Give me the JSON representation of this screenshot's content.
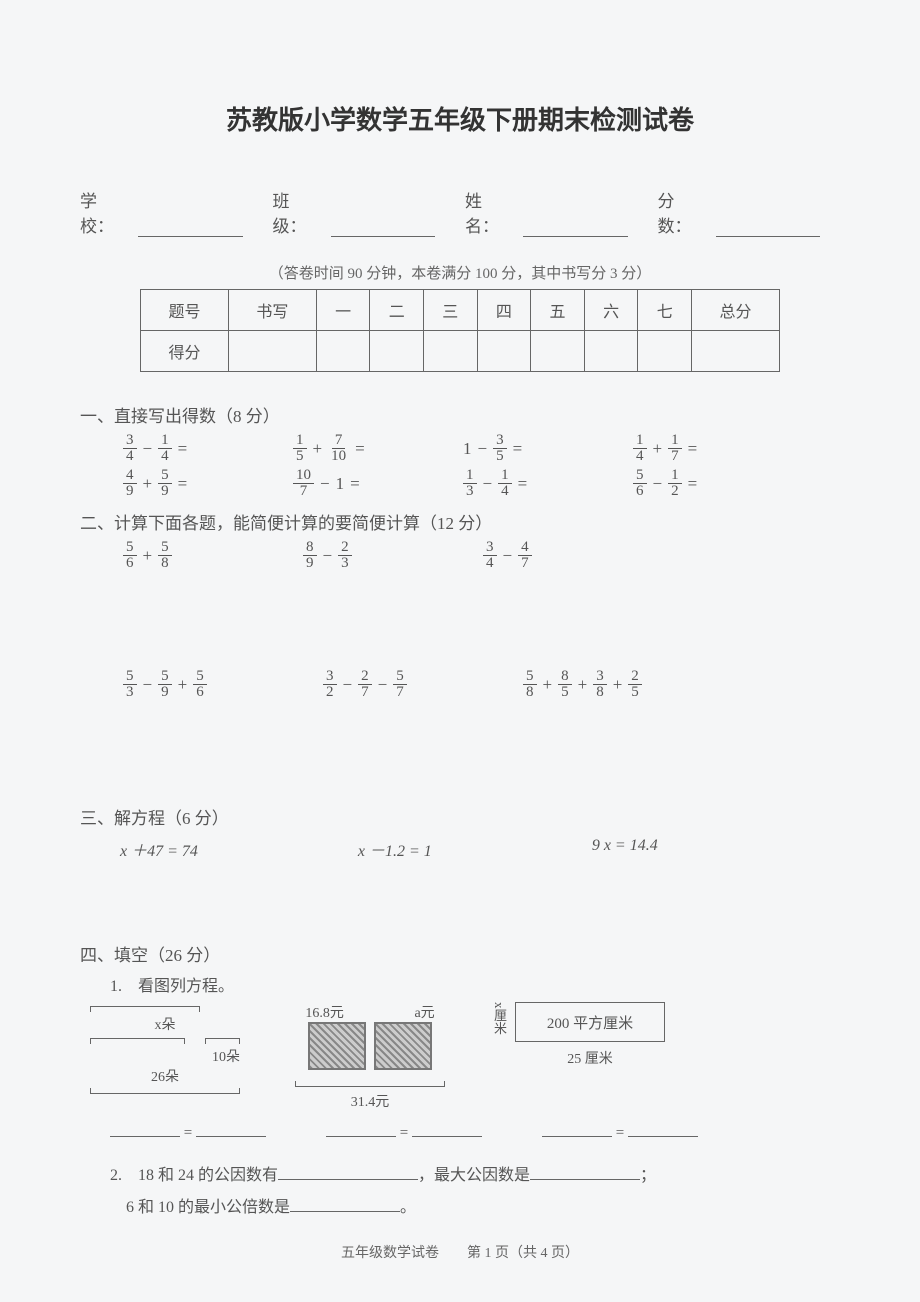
{
  "title": "苏教版小学数学五年级下册期末检测试卷",
  "info": {
    "school": "学校：",
    "class": "班级：",
    "name": "姓名：",
    "score": "分数："
  },
  "note": "（答卷时间 90 分钟，本卷满分 100 分，其中书写分 3 分）",
  "table": {
    "headers": [
      "题号",
      "书写",
      "一",
      "二",
      "三",
      "四",
      "五",
      "六",
      "七",
      "总分"
    ],
    "row_label": "得分"
  },
  "sec1": {
    "title": "一、直接写出得数（8 分）",
    "items": [
      [
        [
          "3",
          "4"
        ],
        "−",
        [
          "1",
          "4"
        ]
      ],
      [
        [
          "1",
          "5"
        ],
        "+",
        [
          "7",
          "10"
        ]
      ],
      [
        "1",
        "−",
        [
          "3",
          "5"
        ]
      ],
      [
        [
          "1",
          "4"
        ],
        "+",
        [
          "1",
          "7"
        ]
      ],
      [
        [
          "4",
          "9"
        ],
        "+",
        [
          "5",
          "9"
        ]
      ],
      [
        [
          "10",
          "7"
        ],
        "−",
        "1"
      ],
      [
        [
          "1",
          "3"
        ],
        "−",
        [
          "1",
          "4"
        ]
      ],
      [
        [
          "5",
          "6"
        ],
        "−",
        [
          "1",
          "2"
        ]
      ]
    ]
  },
  "sec2": {
    "title": "二、计算下面各题，能简便计算的要简便计算（12 分）",
    "row1": [
      [
        [
          "5",
          "6"
        ],
        "+",
        [
          "5",
          "8"
        ]
      ],
      [
        [
          "8",
          "9"
        ],
        "−",
        [
          "2",
          "3"
        ]
      ],
      [
        [
          "3",
          "4"
        ],
        "−",
        [
          "4",
          "7"
        ]
      ]
    ],
    "row2": [
      [
        [
          "5",
          "3"
        ],
        "−",
        [
          "5",
          "9"
        ],
        "+",
        [
          "5",
          "6"
        ]
      ],
      [
        [
          "3",
          "2"
        ],
        "−",
        [
          "2",
          "7"
        ],
        "−",
        [
          "5",
          "7"
        ]
      ],
      [
        [
          "5",
          "8"
        ],
        "+",
        [
          "8",
          "5"
        ],
        "+",
        [
          "3",
          "8"
        ],
        "+",
        [
          "2",
          "5"
        ]
      ]
    ]
  },
  "sec3": {
    "title": "三、解方程（6 分）",
    "eqs": [
      "x ＋47 = 74",
      "x －1.2 = 1",
      "9 x = 14.4"
    ]
  },
  "sec4": {
    "title": "四、填空（26 分）",
    "q1_label": "1.　看图列方程。",
    "d1": {
      "top": "x朵",
      "mid": "10朵",
      "bot": "26朵"
    },
    "d2": {
      "p1": "16.8元",
      "p2": "a元",
      "total": "31.4元"
    },
    "d3": {
      "side": "x厘米",
      "area": "200 平方厘米",
      "bottom": "25 厘米"
    },
    "eq_mark": "=",
    "q2a": "2.　18 和 24 的公因数有",
    "q2b": "，最大公因数是",
    "q2c": "；",
    "q2d": "6 和 10 的最小公倍数是",
    "q2e": "。"
  },
  "footer": "五年级数学试卷　　第 1 页（共 4 页）"
}
